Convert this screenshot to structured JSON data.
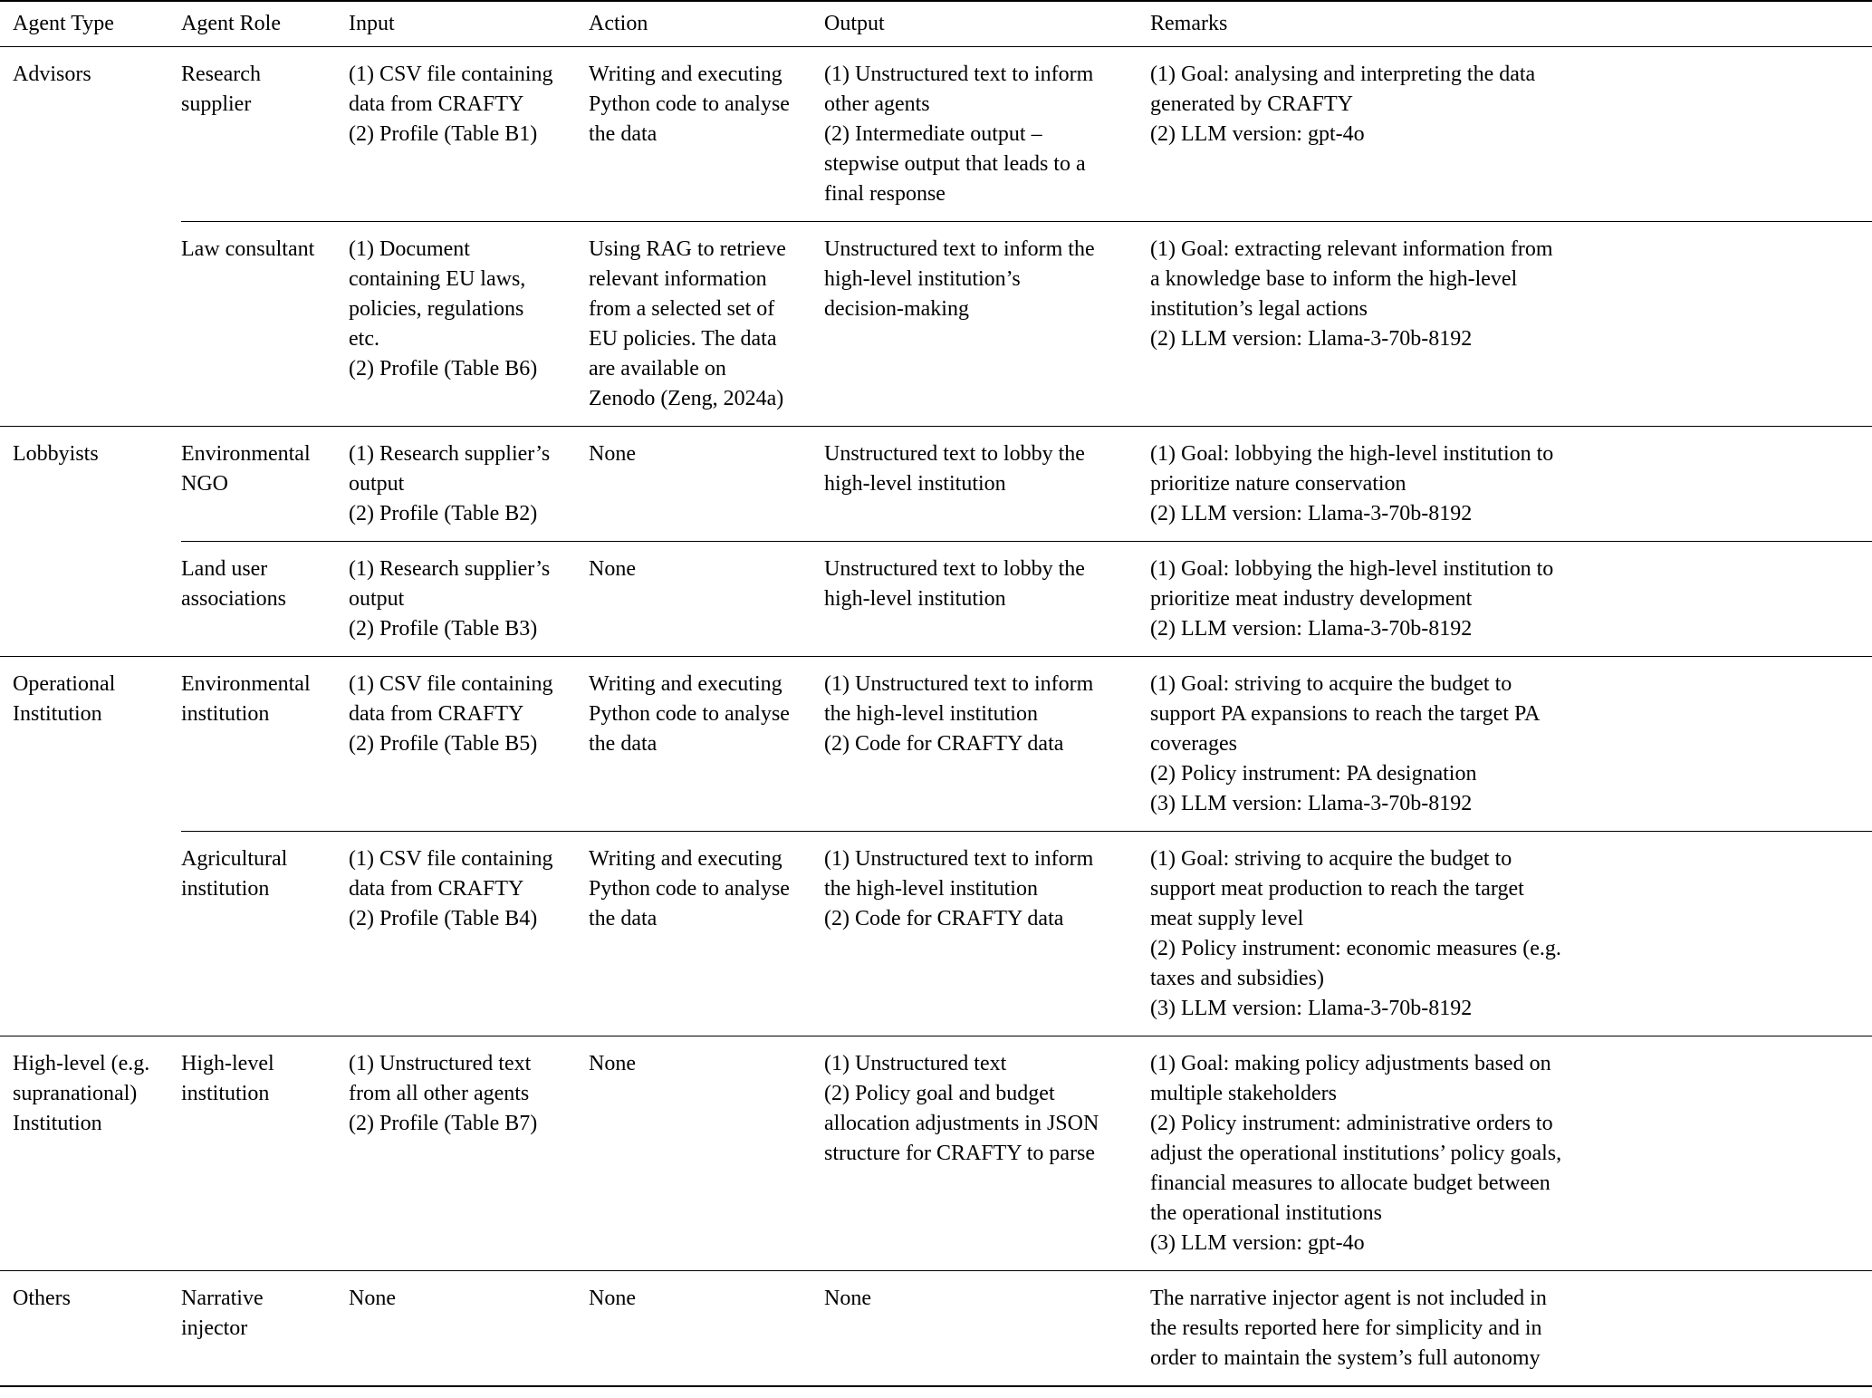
{
  "table": {
    "headers": [
      "Agent Type",
      "Agent Role",
      "Input",
      "Action",
      "Output",
      "Remarks"
    ],
    "groups": [
      {
        "agent_type": "Advisors",
        "rows": [
          {
            "role": "Research\nsupplier",
            "input": "(1) CSV file containing\ndata from CRAFTY\n(2) Profile (Table B1)",
            "action": "Writing and executing\nPython code to analyse\nthe data",
            "output": "(1) Unstructured text to inform\nother agents\n(2) Intermediate output –\nstepwise output that leads to a\nfinal response",
            "remarks": "(1) Goal: analysing and interpreting the data\ngenerated by CRAFTY\n(2) LLM version: gpt-4o"
          },
          {
            "role": "Law consultant",
            "input": "(1) Document\ncontaining EU laws,\npolicies, regulations\netc.\n(2) Profile (Table B6)",
            "action": "Using RAG to retrieve\nrelevant information\nfrom a selected set of\nEU policies. The data\nare available on\nZenodo (Zeng, 2024a)",
            "output": "Unstructured text to inform the\nhigh-level institution’s\ndecision-making",
            "remarks": "(1) Goal: extracting relevant information from\na knowledge base to inform the high-level\ninstitution’s legal actions\n(2) LLM version: Llama-3-70b-8192"
          }
        ]
      },
      {
        "agent_type": "Lobbyists",
        "rows": [
          {
            "role": "Environmental\nNGO",
            "input": "(1) Research supplier’s\noutput\n(2) Profile (Table B2)",
            "action": "None",
            "output": "Unstructured text to lobby the\nhigh-level institution",
            "remarks": "(1) Goal: lobbying the high-level institution to\nprioritize nature conservation\n(2) LLM version: Llama-3-70b-8192"
          },
          {
            "role": "Land user\nassociations",
            "input": "(1) Research supplier’s\noutput\n(2) Profile (Table B3)",
            "action": "None",
            "output": "Unstructured text to lobby the\nhigh-level institution",
            "remarks": "(1) Goal: lobbying the high-level institution to\nprioritize meat industry development\n(2) LLM version: Llama-3-70b-8192"
          }
        ]
      },
      {
        "agent_type": "Operational\nInstitution",
        "rows": [
          {
            "role": "Environmental\ninstitution",
            "input": "(1) CSV file containing\ndata from CRAFTY\n(2) Profile (Table B5)",
            "action": "Writing and executing\nPython code to analyse\nthe data",
            "output": "(1) Unstructured text to inform\nthe high-level institution\n(2) Code for CRAFTY data",
            "remarks": "(1) Goal: striving to acquire the budget to\nsupport PA expansions to reach the target PA\ncoverages\n(2) Policy instrument: PA designation\n(3) LLM version: Llama-3-70b-8192"
          },
          {
            "role": "Agricultural\ninstitution",
            "input": "(1) CSV file containing\ndata from CRAFTY\n(2) Profile (Table B4)",
            "action": "Writing and executing\nPython code to analyse\nthe data",
            "output": "(1) Unstructured text to inform\nthe high-level institution\n(2) Code for CRAFTY data",
            "remarks": "(1) Goal: striving to acquire the budget to\nsupport meat production to reach the target\nmeat supply level\n(2) Policy instrument: economic measures (e.g.\ntaxes and subsidies)\n(3) LLM version: Llama-3-70b-8192"
          }
        ]
      },
      {
        "agent_type": "High-level (e.g.\nsupranational)\nInstitution",
        "rows": [
          {
            "role": "High-level\ninstitution",
            "input": "(1) Unstructured text\nfrom all other agents\n(2) Profile (Table B7)",
            "action": "None",
            "output": "(1) Unstructured text\n(2) Policy goal and budget\nallocation adjustments in JSON\nstructure for CRAFTY to parse",
            "remarks": "(1) Goal: making policy adjustments based on\nmultiple stakeholders\n(2) Policy instrument: administrative orders to\nadjust the operational institutions’ policy goals,\nfinancial measures to allocate budget between\nthe operational institutions\n(3) LLM version: gpt-4o"
          }
        ]
      },
      {
        "agent_type": "Others",
        "rows": [
          {
            "role": "Narrative\ninjector",
            "input": "None",
            "action": "None",
            "output": "None",
            "remarks": "The narrative injector agent is not included in\nthe results reported here for simplicity and in\norder to maintain the system’s full autonomy"
          }
        ]
      }
    ]
  }
}
